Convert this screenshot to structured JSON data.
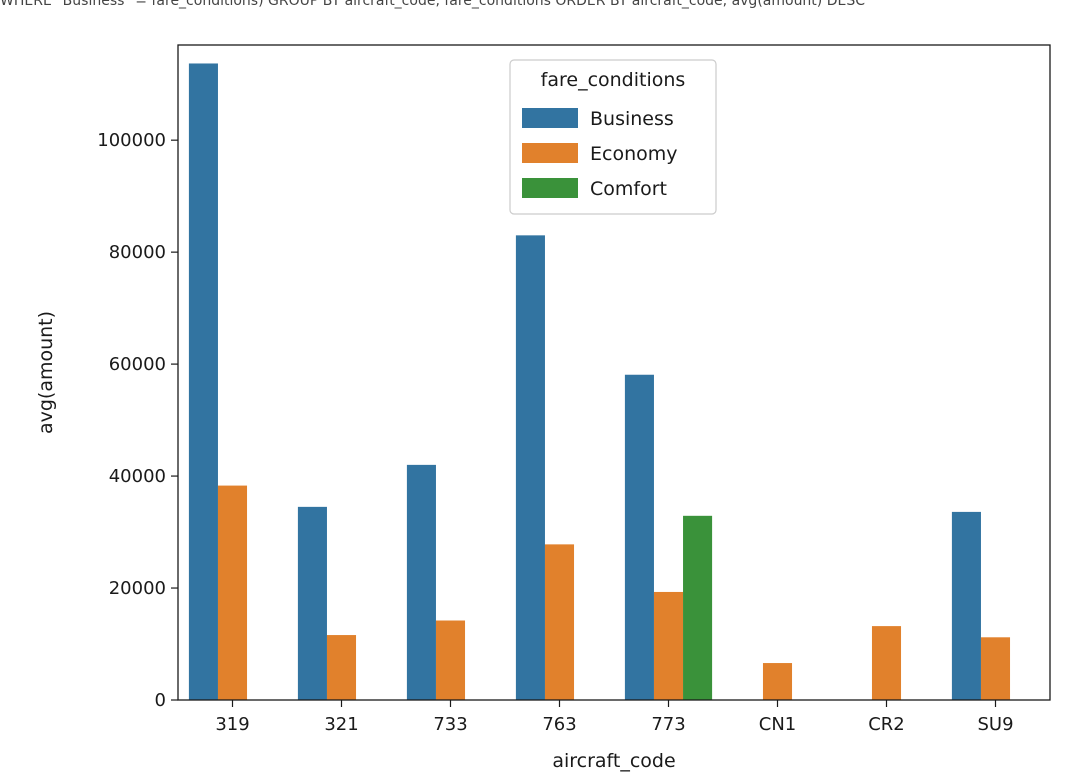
{
  "header": {
    "text": "WHERE \"Business\" = fare_conditions) GROUP BY aircraft_code, fare_conditions ORDER BY aircraft_code, avg(amount) DESC"
  },
  "chart_data": {
    "type": "bar",
    "xlabel": "aircraft_code",
    "ylabel": "avg(amount)",
    "ylim": [
      0,
      117000
    ],
    "yticks": [
      0,
      20000,
      40000,
      60000,
      80000,
      100000
    ],
    "grid": false,
    "legend": {
      "title": "fare_conditions",
      "placement": "top-center"
    },
    "categories": [
      "319",
      "321",
      "733",
      "763",
      "773",
      "CN1",
      "CR2",
      "SU9"
    ],
    "series": [
      {
        "name": "Business",
        "color": "#3274a1",
        "values": [
          113700,
          34500,
          42000,
          83000,
          58100,
          null,
          null,
          33600
        ]
      },
      {
        "name": "Economy",
        "color": "#e1812c",
        "values": [
          38300,
          11600,
          14200,
          27800,
          19300,
          6600,
          13200,
          11200
        ]
      },
      {
        "name": "Comfort",
        "color": "#3a923a",
        "values": [
          null,
          null,
          null,
          null,
          32900,
          null,
          null,
          null
        ]
      }
    ]
  }
}
